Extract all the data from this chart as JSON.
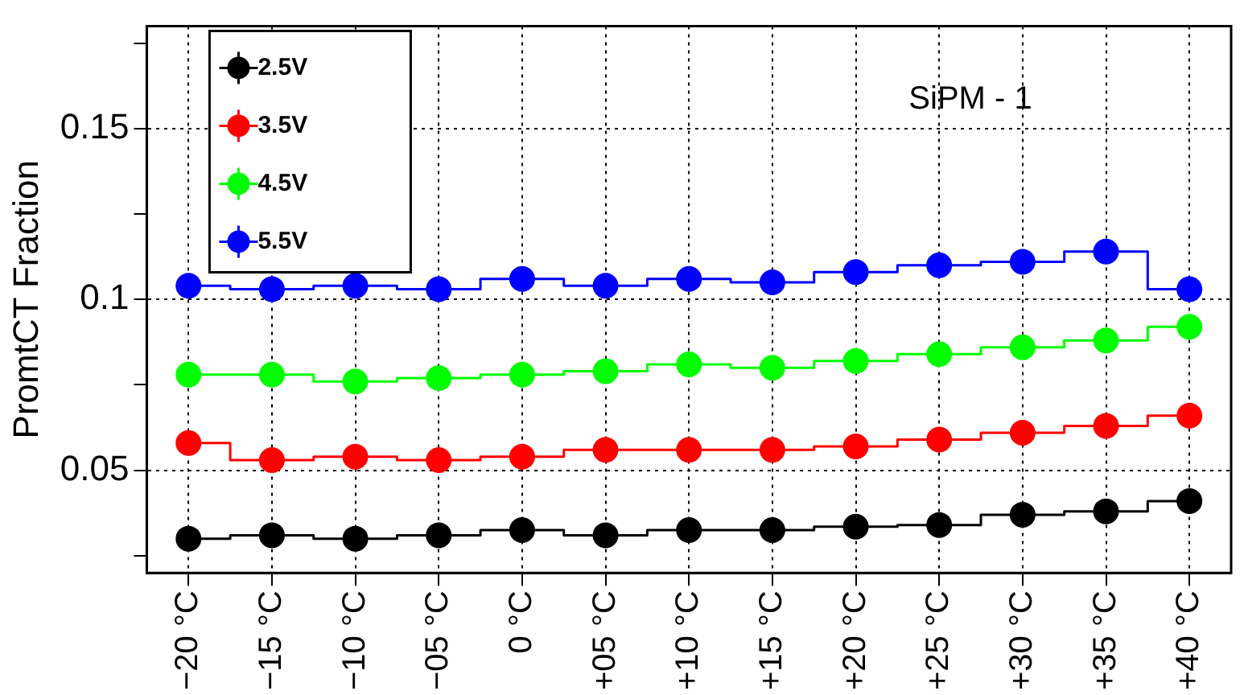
{
  "chart_data": {
    "type": "step",
    "title": "SiPM - 1",
    "ylabel": "PromtCT Fraction",
    "categories": [
      "−20 °C",
      "−15 °C",
      "−10 °C",
      "−05 °C",
      "0 °C",
      "+05 °C",
      "+10 °C",
      "+15 °C",
      "+20 °C",
      "+25 °C",
      "+30 °C",
      "+35 °C",
      "+40 °C"
    ],
    "series": [
      {
        "name": "2.5V",
        "color": "#000000",
        "values": [
          0.03,
          0.031,
          0.03,
          0.031,
          0.0325,
          0.031,
          0.0325,
          0.0325,
          0.0335,
          0.034,
          0.037,
          0.038,
          0.041
        ]
      },
      {
        "name": "3.5V",
        "color": "#ff0000",
        "values": [
          0.058,
          0.053,
          0.054,
          0.053,
          0.054,
          0.056,
          0.056,
          0.056,
          0.057,
          0.059,
          0.061,
          0.063,
          0.066
        ]
      },
      {
        "name": "4.5V",
        "color": "#00ff00",
        "values": [
          0.078,
          0.078,
          0.076,
          0.077,
          0.078,
          0.079,
          0.081,
          0.08,
          0.082,
          0.084,
          0.086,
          0.088,
          0.092
        ]
      },
      {
        "name": "5.5V",
        "color": "#0000ff",
        "values": [
          0.104,
          0.103,
          0.104,
          0.103,
          0.106,
          0.104,
          0.106,
          0.105,
          0.108,
          0.11,
          0.111,
          0.114,
          0.103
        ]
      }
    ],
    "ylim": [
      0.02,
      0.18
    ],
    "yticks": [
      {
        "value": 0.025,
        "label": null
      },
      0.05,
      {
        "value": 0.075,
        "label": null
      },
      0.1,
      {
        "value": 0.125,
        "label": null
      },
      0.15,
      {
        "value": 0.175,
        "label": null
      }
    ],
    "grid": true,
    "legend": "top left",
    "marker": "circle",
    "line_style": "solid"
  }
}
